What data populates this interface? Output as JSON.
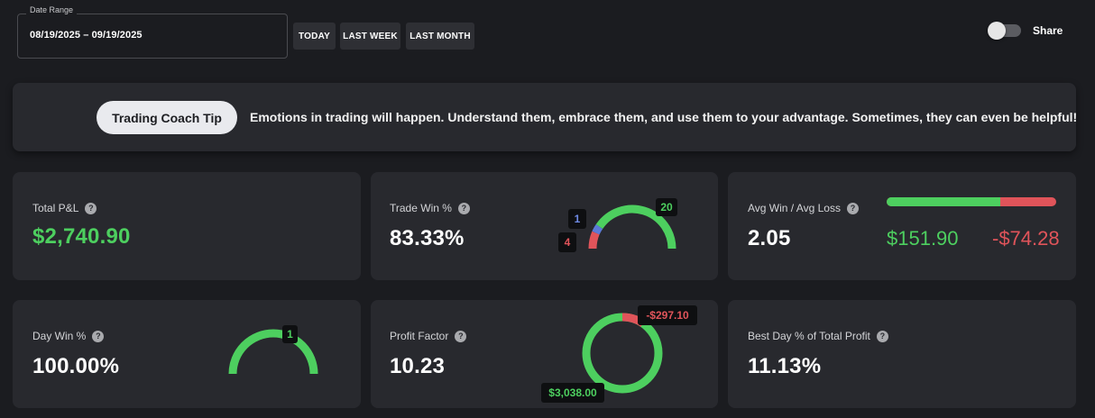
{
  "date_range": {
    "label": "Date Range",
    "value": "08/19/2025 – 09/19/2025"
  },
  "range_buttons": {
    "today": "TODAY",
    "last_week": "LAST WEEK",
    "last_month": "LAST MONTH"
  },
  "share": {
    "label": "Share",
    "enabled": false
  },
  "tip": {
    "button": "Trading Coach Tip",
    "text": "Emotions in trading will happen. Understand them, embrace them, and use them to your advantage. Sometimes, they can even be helpful!"
  },
  "help_icon": "?",
  "colors": {
    "win": "#4dcf5f",
    "loss": "#e0545a",
    "breakeven": "#5b7ad6",
    "card": "#28292e"
  },
  "cards": {
    "total_pnl": {
      "label": "Total P&L",
      "value": "$2,740.90"
    },
    "trade_win": {
      "label": "Trade Win %",
      "value": "83.33%",
      "wins": "20",
      "breakeven": "1",
      "losses": "4"
    },
    "avg_win_loss": {
      "label": "Avg Win / Avg Loss",
      "value": "2.05",
      "avg_win": "$151.90",
      "avg_loss": "-$74.28",
      "win_fraction": 0.672
    },
    "day_win": {
      "label": "Day Win %",
      "value": "100.00%",
      "winning_days": "1"
    },
    "profit_factor": {
      "label": "Profit Factor",
      "value": "10.23",
      "gross_profit": "$3,038.00",
      "gross_loss": "-$297.10"
    },
    "best_day": {
      "label": "Best Day % of Total Profit",
      "value": "11.13%"
    }
  }
}
